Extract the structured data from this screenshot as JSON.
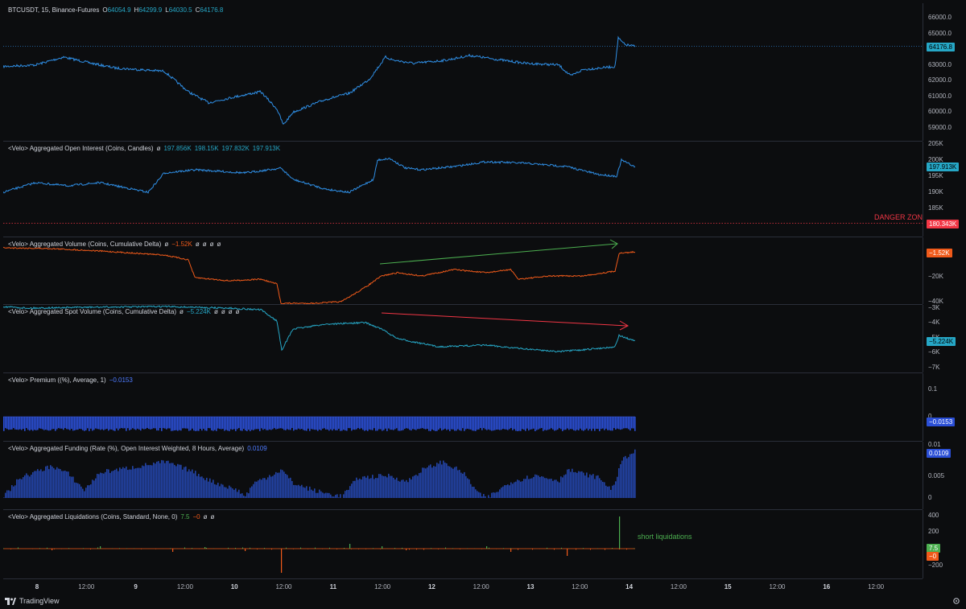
{
  "main": {
    "symbol": "BTCUSDT, 15, Binance-Futures",
    "ohlc": [
      {
        "k": "O",
        "v": "64054.9"
      },
      {
        "k": "H",
        "v": "64299.9"
      },
      {
        "k": "L",
        "v": "64030.5"
      },
      {
        "k": "C",
        "v": "64176.8"
      }
    ],
    "last": "64176.8",
    "ticks": [
      "66000.0",
      "65000.0",
      "64000.0",
      "63000.0",
      "62000.0",
      "61000.0",
      "60000.0",
      "59000.0"
    ],
    "tick_values": [
      66000,
      65000,
      64000,
      63000,
      62000,
      61000,
      60000,
      59000
    ]
  },
  "oi": {
    "title": "<Velo> Aggregated Open Interest (Coins, Candles)",
    "icon": "ø",
    "values": [
      "197.856K",
      "198.15K",
      "197.832K",
      "197.913K"
    ],
    "last": "197.913K",
    "danger_value": "180.343K",
    "danger_label": "DANGER ZONE",
    "ticks": [
      "205K",
      "200K",
      "195K",
      "190K",
      "185K"
    ]
  },
  "vol": {
    "title": "<Velo> Aggregated Volume (Coins, Cumulative Delta)",
    "icon": "ø",
    "value": "−1.52K",
    "extra_icons": [
      "ø",
      "ø",
      "ø",
      "ø"
    ],
    "last": "−1.52K",
    "ticks": [
      "−20K",
      "−40K"
    ]
  },
  "spot": {
    "title": "<Velo> Aggregated Spot Volume (Coins, Cumulative Delta)",
    "icon": "ø",
    "value": "−5.224K",
    "extra_icons": [
      "ø",
      "ø",
      "ø",
      "ø"
    ],
    "last": "−5.224K",
    "ticks": [
      "−3K",
      "−4K",
      "−5K",
      "−6K",
      "−7K"
    ]
  },
  "prem": {
    "title": "<Velo> Premium ((%), Average, 1)",
    "value": "−0.0153",
    "last": "−0.0153",
    "ticks": [
      "0.1",
      "0"
    ]
  },
  "fund": {
    "title": "<Velo> Aggregated Funding (Rate (%), Open Interest Weighted, 8 Hours, Average)",
    "value": "0.0109",
    "last": "0.0109",
    "ticks": [
      "0.01",
      "0.005",
      "0"
    ]
  },
  "liq": {
    "title": "<Velo> Aggregated Liquidations (Coins, Standard, None, 0)",
    "value_green": "7.5",
    "value_red": "−0",
    "extra_icons": [
      "ø",
      "ø"
    ],
    "last_green": "7.5",
    "last_red": "−0",
    "annotation": "short liquidations",
    "ticks": [
      "400",
      "200",
      "0",
      "−200"
    ]
  },
  "time_axis": [
    {
      "label": "8",
      "day": true
    },
    {
      "label": "12:00",
      "day": false
    },
    {
      "label": "9",
      "day": true
    },
    {
      "label": "12:00",
      "day": false
    },
    {
      "label": "10",
      "day": true
    },
    {
      "label": "12:00",
      "day": false
    },
    {
      "label": "11",
      "day": true
    },
    {
      "label": "12:00",
      "day": false
    },
    {
      "label": "12",
      "day": true
    },
    {
      "label": "12:00",
      "day": false
    },
    {
      "label": "13",
      "day": true
    },
    {
      "label": "12:00",
      "day": false
    },
    {
      "label": "14",
      "day": true
    },
    {
      "label": "12:00",
      "day": false
    },
    {
      "label": "15",
      "day": true
    },
    {
      "label": "12:00",
      "day": false
    },
    {
      "label": "16",
      "day": true
    },
    {
      "label": "12:00",
      "day": false
    }
  ],
  "footer": {
    "brand": "TradingView"
  },
  "colors": {
    "price": "#2f8fe6",
    "vol": "#f05a1a",
    "spot": "#26a7c6",
    "premium": "#2b4fd6",
    "funding": "#2344a8",
    "danger": "#f23645",
    "green_arrow": "#4caf50",
    "red_arrow": "#f23645",
    "liq_green": "#4caf50",
    "liq_red": "#f05a1a"
  }
}
